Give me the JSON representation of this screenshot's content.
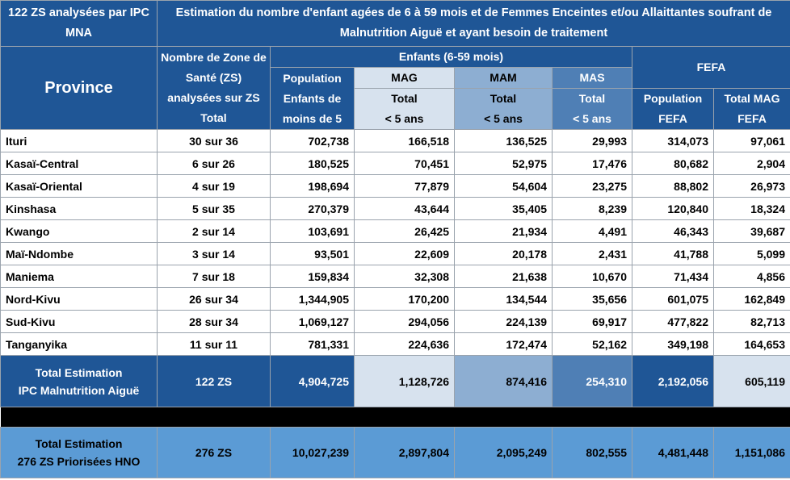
{
  "header": {
    "corner": "122 ZS analysées par IPC MNA",
    "title": "Estimation du nombre d'enfant agées de 6 à 59 mois et de Femmes Enceintes et/ou Allaittantes soufrant de Malnutrition Aiguë et ayant besoin de traitement",
    "province": "Province",
    "zs_count": "Nombre de Zone de Santé (ZS) analysées sur ZS Total",
    "enfants": "Enfants (6-59 mois)",
    "fefa": "FEFA",
    "population": "Population",
    "pop_enfants": "Enfants de moins de 5",
    "mag": "MAG",
    "mam": "MAM",
    "mas": "MAS",
    "total_lt5": "Total",
    "lt5": "< 5 ans",
    "pop_fefa_1": "Population",
    "pop_fefa_2": "FEFA",
    "total_mag_fefa_1": "Total MAG",
    "total_mag_fefa_2": "FEFA"
  },
  "rows": [
    {
      "province": "Ituri",
      "zs": "30 sur 36",
      "pop": "702,738",
      "mag": "166,518",
      "mam": "136,525",
      "mas": "29,993",
      "pop_fefa": "314,073",
      "mag_fefa": "97,061"
    },
    {
      "province": "Kasaï-Central",
      "zs": "6 sur 26",
      "pop": "180,525",
      "mag": "70,451",
      "mam": "52,975",
      "mas": "17,476",
      "pop_fefa": "80,682",
      "mag_fefa": "2,904"
    },
    {
      "province": "Kasaï-Oriental",
      "zs": "4 sur 19",
      "pop": "198,694",
      "mag": "77,879",
      "mam": "54,604",
      "mas": "23,275",
      "pop_fefa": "88,802",
      "mag_fefa": "26,973"
    },
    {
      "province": "Kinshasa",
      "zs": "5 sur 35",
      "pop": "270,379",
      "mag": "43,644",
      "mam": "35,405",
      "mas": "8,239",
      "pop_fefa": "120,840",
      "mag_fefa": "18,324"
    },
    {
      "province": "Kwango",
      "zs": "2 sur 14",
      "pop": "103,691",
      "mag": "26,425",
      "mam": "21,934",
      "mas": "4,491",
      "pop_fefa": "46,343",
      "mag_fefa": "39,687"
    },
    {
      "province": "Maï-Ndombe",
      "zs": "3 sur 14",
      "pop": "93,501",
      "mag": "22,609",
      "mam": "20,178",
      "mas": "2,431",
      "pop_fefa": "41,788",
      "mag_fefa": "5,099"
    },
    {
      "province": "Maniema",
      "zs": "7 sur 18",
      "pop": "159,834",
      "mag": "32,308",
      "mam": "21,638",
      "mas": "10,670",
      "pop_fefa": "71,434",
      "mag_fefa": "4,856"
    },
    {
      "province": "Nord-Kivu",
      "zs": "26 sur 34",
      "pop": "1,344,905",
      "mag": "170,200",
      "mam": "134,544",
      "mas": "35,656",
      "pop_fefa": "601,075",
      "mag_fefa": "162,849"
    },
    {
      "province": "Sud-Kivu",
      "zs": "28 sur 34",
      "pop": "1,069,127",
      "mag": "294,056",
      "mam": "224,139",
      "mas": "69,917",
      "pop_fefa": "477,822",
      "mag_fefa": "82,713"
    },
    {
      "province": "Tanganyika",
      "zs": "11 sur 11",
      "pop": "781,331",
      "mag": "224,636",
      "mam": "172,474",
      "mas": "52,162",
      "pop_fefa": "349,198",
      "mag_fefa": "164,653"
    }
  ],
  "total_ipc": {
    "label_1": "Total Estimation",
    "label_2": "IPC Malnutrition Aiguë",
    "zs": "122 ZS",
    "pop": "4,904,725",
    "mag": "1,128,726",
    "mam": "874,416",
    "mas": "254,310",
    "pop_fefa": "2,192,056",
    "mag_fefa": "605,119"
  },
  "total_hno": {
    "label_1": "Total Estimation",
    "label_2": "276 ZS Priorisées HNO",
    "zs": "276 ZS",
    "pop": "10,027,239",
    "mag": "2,897,804",
    "mam": "2,095,249",
    "mas": "802,555",
    "pop_fefa": "4,481,448",
    "mag_fefa": "1,151,086"
  },
  "colors": {
    "header": "#1f5696",
    "mag": "#d7e2ee",
    "mam": "#8daed2",
    "mas": "#4f7fb5",
    "hno": "#5b9bd5"
  }
}
